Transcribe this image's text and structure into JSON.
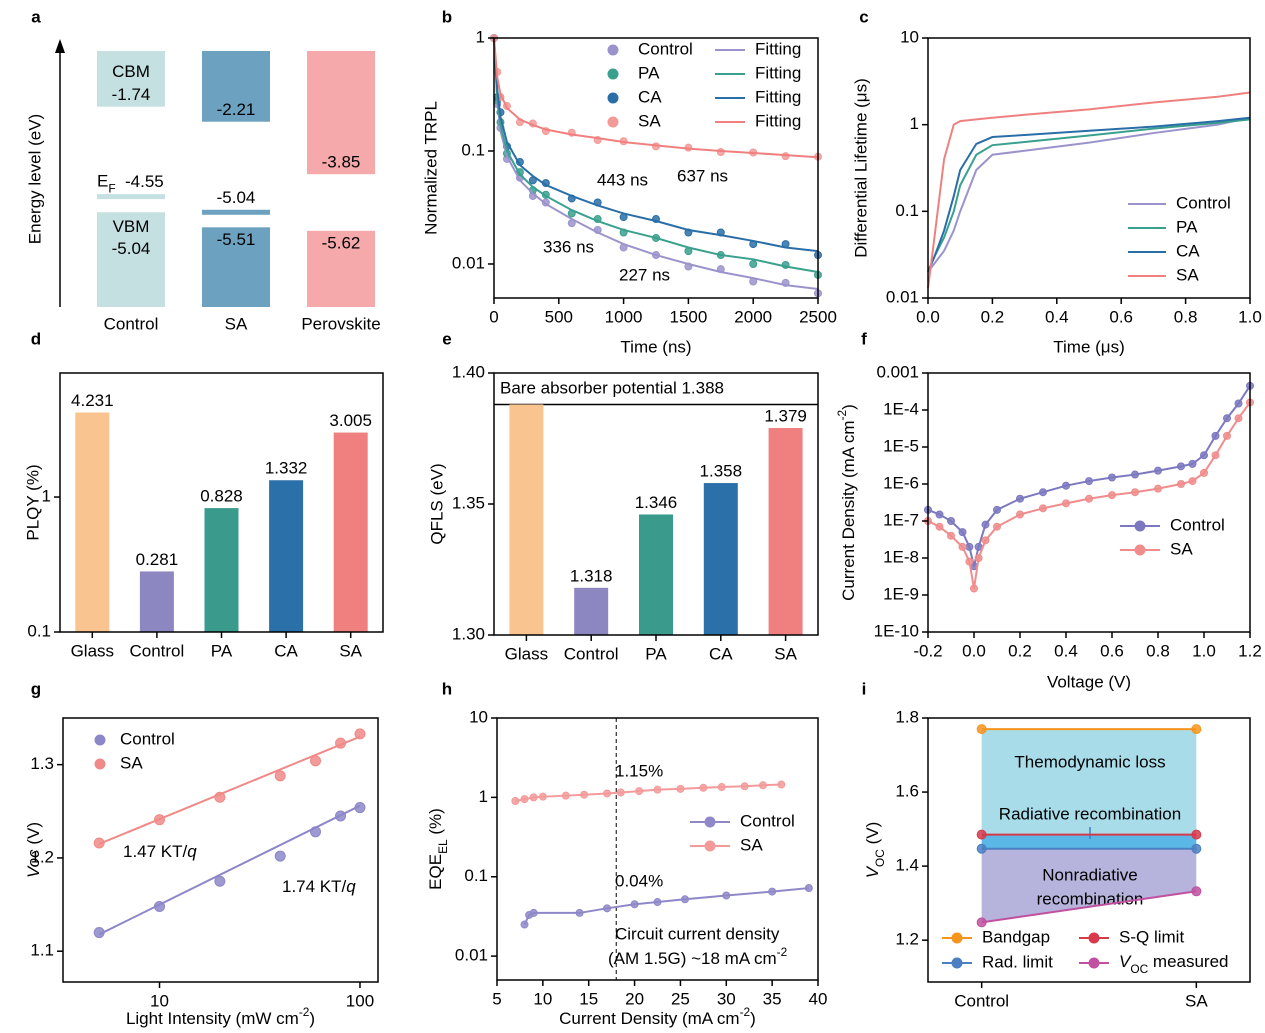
{
  "chart_data": [
    {
      "label": "a",
      "type": "energy",
      "ylabel": "Energy level (eV)",
      "categories": [
        "Control",
        "SA",
        "Perovskite"
      ],
      "colors": [
        "#c4e0e1",
        "#6ca1bf",
        "#f5a9aa"
      ],
      "ylim": [
        -8,
        0
      ],
      "series": [
        {
          "name": "CBM",
          "values": [
            -1.74,
            -2.21,
            -3.85
          ]
        },
        {
          "name": [
            {
              "text": "E"
            },
            {
              "text": "F",
              "style": "sub"
            }
          ],
          "values": [
            -4.55,
            -5.04,
            null
          ]
        },
        {
          "name": "VBM",
          "values": [
            -5.04,
            -5.51,
            -5.62
          ]
        }
      ]
    },
    {
      "label": "b",
      "type": "line",
      "xlabel": "Time (ns)",
      "ylabel": "Normalized TRPL",
      "ylog": true,
      "xlim": [
        0,
        2500
      ],
      "xticks": [
        0,
        500,
        1000,
        1500,
        2000,
        2500
      ],
      "ylim": [
        0.005,
        1
      ],
      "yticks": [
        0.01,
        0.1,
        1
      ],
      "x": [
        0,
        25,
        50,
        100,
        200,
        300,
        400,
        600,
        800,
        1000,
        1250,
        1500,
        1750,
        2000,
        2250,
        2500
      ],
      "series": [
        {
          "name": "Control",
          "mode": "markers",
          "color": "#9b94cc",
          "values": [
            1,
            0.26,
            0.16,
            0.085,
            0.058,
            0.04,
            0.035,
            0.023,
            0.02,
            0.014,
            0.012,
            0.0095,
            0.009,
            0.007,
            0.0068,
            0.0055
          ]
        },
        {
          "name": "PA",
          "mode": "markers",
          "color": "#3aa08e",
          "values": [
            1,
            0.28,
            0.18,
            0.095,
            0.065,
            0.045,
            0.041,
            0.028,
            0.025,
            0.019,
            0.017,
            0.013,
            0.012,
            0.01,
            0.0098,
            0.008
          ]
        },
        {
          "name": "CA",
          "mode": "markers",
          "color": "#2a6ea8",
          "values": [
            1,
            0.3,
            0.22,
            0.11,
            0.08,
            0.055,
            0.052,
            0.038,
            0.035,
            0.026,
            0.025,
            0.019,
            0.019,
            0.015,
            0.015,
            0.012
          ]
        },
        {
          "name": "SA",
          "mode": "markers",
          "color": "#f29a98",
          "values": [
            1,
            0.5,
            0.3,
            0.25,
            0.18,
            0.175,
            0.15,
            0.145,
            0.125,
            0.122,
            0.11,
            0.107,
            0.098,
            0.097,
            0.09,
            0.089
          ]
        },
        {
          "name": "Fitting",
          "mode": "lines",
          "color": "#9b94cc",
          "values": [
            1,
            0.28,
            0.15,
            0.09,
            0.055,
            0.042,
            0.034,
            0.025,
            0.019,
            0.015,
            0.012,
            0.01,
            0.0085,
            0.0075,
            0.0065,
            0.006
          ]
        },
        {
          "name": "Fitting",
          "mode": "lines",
          "color": "#3aa08e",
          "values": [
            1,
            0.3,
            0.17,
            0.1,
            0.062,
            0.048,
            0.04,
            0.03,
            0.024,
            0.02,
            0.017,
            0.014,
            0.012,
            0.011,
            0.0095,
            0.0085
          ]
        },
        {
          "name": "Fitting",
          "mode": "lines",
          "color": "#2a6ea8",
          "values": [
            1,
            0.35,
            0.2,
            0.12,
            0.075,
            0.06,
            0.05,
            0.04,
            0.033,
            0.028,
            0.024,
            0.02,
            0.018,
            0.016,
            0.014,
            0.013
          ]
        },
        {
          "name": "Fitting",
          "mode": "lines",
          "color": "#f08080",
          "values": [
            1,
            0.45,
            0.32,
            0.24,
            0.19,
            0.17,
            0.155,
            0.14,
            0.13,
            0.12,
            0.112,
            0.105,
            0.1,
            0.096,
            0.092,
            0.088
          ]
        }
      ],
      "annotations": [
        {
          "text": "443 ns",
          "color": "#2a6ea8"
        },
        {
          "text": "637 ns",
          "color": "#f08080"
        },
        {
          "text": "336 ns",
          "color": "#3aa08e"
        },
        {
          "text": "227 ns",
          "color": "#9b94cc"
        }
      ]
    },
    {
      "label": "c",
      "type": "line",
      "xlabel": "Time (μs)",
      "ylabel": "Differential Lifetime (μs)",
      "ylog": true,
      "xlim": [
        0,
        1
      ],
      "xticks": [
        {
          "value": 0,
          "label": "0.0"
        },
        0.2,
        0.4,
        0.6,
        0.8,
        {
          "value": 1,
          "label": "1.0"
        }
      ],
      "ylim": [
        0.01,
        10
      ],
      "yticks": [
        0.01,
        0.1,
        1,
        10
      ],
      "x": [
        0,
        0.02,
        0.05,
        0.08,
        0.1,
        0.15,
        0.2,
        0.3,
        0.5,
        0.7,
        0.9,
        1.0
      ],
      "series": [
        {
          "name": "Control",
          "mode": "lines",
          "color": "#9b94cc",
          "values": [
            0.02,
            0.025,
            0.035,
            0.06,
            0.1,
            0.3,
            0.45,
            0.5,
            0.62,
            0.8,
            1.0,
            1.2
          ]
        },
        {
          "name": "PA",
          "mode": "lines",
          "color": "#3aa08e",
          "values": [
            0.02,
            0.03,
            0.05,
            0.1,
            0.2,
            0.45,
            0.58,
            0.63,
            0.75,
            0.9,
            1.05,
            1.15
          ]
        },
        {
          "name": "CA",
          "mode": "lines",
          "color": "#2a6ea8",
          "values": [
            0.02,
            0.03,
            0.06,
            0.15,
            0.3,
            0.6,
            0.72,
            0.76,
            0.85,
            0.95,
            1.1,
            1.2
          ]
        },
        {
          "name": "SA",
          "mode": "lines",
          "color": "#f08080",
          "values": [
            0.013,
            0.05,
            0.4,
            1.0,
            1.1,
            1.15,
            1.2,
            1.3,
            1.5,
            1.8,
            2.1,
            2.35
          ]
        }
      ]
    },
    {
      "label": "d",
      "type": "bar",
      "ylabel": "PLQY (%)",
      "ylog": true,
      "ylim": [
        0.1,
        8.3
      ],
      "yticks": [
        0.1,
        1
      ],
      "categories": [
        "Glass",
        "Control",
        "PA",
        "CA",
        "SA"
      ],
      "values": [
        4.231,
        0.281,
        0.828,
        1.332,
        3.005
      ],
      "colors": [
        "#f9c48f",
        "#8c87c0",
        "#3a9a8c",
        "#2b70a8",
        "#f08080"
      ]
    },
    {
      "label": "e",
      "type": "bar",
      "ylabel": "QFLS (eV)",
      "ylim": [
        1.3,
        1.4
      ],
      "yticks": [
        {
          "value": 1.3,
          "label": "1.30"
        },
        1.35,
        {
          "value": 1.4,
          "label": "1.40"
        }
      ],
      "categories": [
        "Glass",
        "Control",
        "PA",
        "CA",
        "SA"
      ],
      "values": [
        1.388,
        1.318,
        1.346,
        1.358,
        1.379
      ],
      "value_labels": [
        null,
        "1.318",
        "1.346",
        "1.358",
        "1.379"
      ],
      "colors": [
        "#f9c48f",
        "#8c87c0",
        "#3a9a8c",
        "#2b70a8",
        "#f08080"
      ],
      "reference": 1.388,
      "annotations": [
        {
          "text": "Bare absorber potential 1.388",
          "color": "#000000"
        }
      ]
    },
    {
      "label": "f",
      "type": "line",
      "xlabel": "Voltage (V)",
      "ylabel": [
        {
          "text": "Current Density (mA cm"
        },
        {
          "text": "-2",
          "style": "sup"
        },
        {
          "text": ")"
        }
      ],
      "ylog": true,
      "xlim": [
        -0.2,
        1.2
      ],
      "xticks": [
        -0.2,
        {
          "value": 0,
          "label": "0.0"
        },
        0.2,
        0.4,
        0.6,
        0.8,
        {
          "value": 1,
          "label": "1.0"
        },
        1.2
      ],
      "ylim": [
        1e-10,
        0.001
      ],
      "yticks": [
        {
          "value": 1e-10,
          "label": "1E-10"
        },
        {
          "value": 1e-09,
          "label": "1E-9"
        },
        {
          "value": 1e-08,
          "label": "1E-8"
        },
        {
          "value": 1e-07,
          "label": "1E-7"
        },
        {
          "value": 1e-06,
          "label": "1E-6"
        },
        {
          "value": 1e-05,
          "label": "1E-5"
        },
        {
          "value": 0.0001,
          "label": "1E-4"
        },
        0.001
      ],
      "x": [
        -0.2,
        -0.15,
        -0.1,
        -0.05,
        -0.02,
        0,
        0.02,
        0.05,
        0.1,
        0.2,
        0.3,
        0.4,
        0.5,
        0.6,
        0.7,
        0.8,
        0.9,
        0.95,
        1.0,
        1.05,
        1.1,
        1.15,
        1.2
      ],
      "series": [
        {
          "name": "Control",
          "mode": "lines+markers",
          "color": "#7b78c0",
          "values": [
            2e-07,
            1.5e-07,
            1e-07,
            5e-08,
            2e-08,
            6e-09,
            2e-08,
            8e-08,
            2e-07,
            4e-07,
            6e-07,
            9e-07,
            1.2e-06,
            1.5e-06,
            1.8e-06,
            2.3e-06,
            3e-06,
            3.5e-06,
            6e-06,
            2e-05,
            6e-05,
            0.00015,
            0.00045
          ]
        },
        {
          "name": "SA",
          "mode": "lines+markers",
          "color": "#f08c8c",
          "values": [
            1e-07,
            7e-08,
            4e-08,
            2e-08,
            8e-09,
            1.5e-09,
            1e-08,
            3e-08,
            7e-08,
            1.5e-07,
            2.2e-07,
            3e-07,
            4e-07,
            5e-07,
            6e-07,
            7.5e-07,
            1e-06,
            1.2e-06,
            2e-06,
            6e-06,
            2e-05,
            6e-05,
            0.00016
          ]
        }
      ]
    },
    {
      "label": "g",
      "type": "line",
      "xlabel": [
        {
          "text": "Light Intensity (mW cm"
        },
        {
          "text": "-2",
          "style": "sup"
        },
        {
          "text": ")"
        }
      ],
      "ylabel": [
        {
          "text": "Voc",
          "style": "italic"
        },
        {
          "text": " (V)"
        }
      ],
      "xlog": true,
      "xlim": [
        3.3,
        123
      ],
      "xticks": [
        10,
        100
      ],
      "ylim": [
        1.067,
        1.35
      ],
      "yticks": [
        1.1,
        1.2,
        1.3
      ],
      "x": [
        5,
        10,
        20,
        40,
        60,
        80,
        100
      ],
      "series": [
        {
          "name": "Control",
          "mode": "markers",
          "color": "#8c87c9",
          "values": [
            1.12,
            1.148,
            1.175,
            1.202,
            1.228,
            1.245,
            1.254
          ],
          "fit_x": [
            5,
            100
          ],
          "fit": [
            1.118,
            1.256
          ]
        },
        {
          "name": "SA",
          "mode": "markers",
          "color": "#f08a88",
          "values": [
            1.216,
            1.241,
            1.265,
            1.288,
            1.304,
            1.323,
            1.333
          ],
          "fit_x": [
            5,
            100
          ],
          "fit": [
            1.215,
            1.33
          ]
        }
      ],
      "annotations": [
        {
          "text": [
            {
              "text": "1.47 KT/"
            },
            {
              "text": "q",
              "style": "italic"
            }
          ],
          "color": "#f08a88"
        },
        {
          "text": [
            {
              "text": "1.74 KT/"
            },
            {
              "text": "q",
              "style": "italic"
            }
          ],
          "color": "#8c87c9"
        }
      ]
    },
    {
      "label": "h",
      "type": "line",
      "xlabel": [
        {
          "text": "Current Density (mA cm"
        },
        {
          "text": "-2",
          "style": "sup"
        },
        {
          "text": ")"
        }
      ],
      "ylabel": [
        {
          "text": "EQE"
        },
        {
          "text": "EL",
          "style": "sub"
        },
        {
          "text": " (%)"
        }
      ],
      "ylog": true,
      "xlim": [
        5,
        40
      ],
      "xticks": [
        5,
        10,
        15,
        20,
        25,
        30,
        35,
        40
      ],
      "ylim": [
        0.005,
        10
      ],
      "yticks": [
        0.01,
        0.1,
        1,
        10
      ],
      "vline": 18,
      "series": [
        {
          "name": "Control",
          "mode": "lines+markers",
          "color": "#8e88c8",
          "x": [
            8,
            8.5,
            9,
            14,
            17,
            20,
            22.5,
            25.5,
            30,
            35,
            39
          ],
          "values": [
            0.025,
            0.033,
            0.035,
            0.035,
            0.04,
            0.045,
            0.048,
            0.052,
            0.058,
            0.065,
            0.072
          ]
        },
        {
          "name": "SA",
          "mode": "lines+markers",
          "color": "#f39a9a",
          "x": [
            7,
            8,
            9,
            10,
            12.5,
            14.5,
            17,
            18.5,
            20.5,
            22.5,
            25,
            27.5,
            29.5,
            32,
            34,
            36
          ],
          "values": [
            0.9,
            0.95,
            1.0,
            1.02,
            1.05,
            1.08,
            1.12,
            1.15,
            1.2,
            1.25,
            1.28,
            1.32,
            1.35,
            1.38,
            1.42,
            1.45
          ]
        }
      ],
      "annotations": [
        {
          "text": "1.15%",
          "color": "#000000"
        },
        {
          "text": "0.04%",
          "color": "#000000"
        },
        {
          "text": "Circuit current density",
          "color": "#000000"
        },
        {
          "text": [
            {
              "text": "(AM 1.5G) ~18 mA cm"
            },
            {
              "text": "-2",
              "style": "sup"
            }
          ],
          "color": "#000000"
        }
      ]
    },
    {
      "label": "i",
      "type": "line",
      "ylabel": [
        {
          "text": "V",
          "style": "italic"
        },
        {
          "text": "OC",
          "style": "sub"
        },
        {
          "text": " (V)"
        }
      ],
      "ylim": [
        1.087,
        1.8
      ],
      "yticks": [
        1.2,
        1.4,
        1.6,
        1.8
      ],
      "categories": [
        "Control",
        "SA"
      ],
      "series": [
        {
          "name": "Bandgap",
          "mode": "lines+markers",
          "color": "#f7941d",
          "values": [
            1.77,
            1.77
          ]
        },
        {
          "name": "S-Q limit",
          "mode": "lines+markers",
          "color": "#d63a4a",
          "values": [
            1.485,
            1.485
          ]
        },
        {
          "name": "Rad. limit",
          "mode": "lines+markers",
          "color": "#4a7fc1",
          "values": [
            1.447,
            1.447
          ]
        },
        {
          "name": [
            {
              "text": "V",
              "style": "italic"
            },
            {
              "text": "OC",
              "style": "sub"
            },
            {
              "text": " measured"
            }
          ],
          "mode": "lines+markers",
          "color": "#c050a0",
          "values": [
            1.248,
            1.332
          ]
        }
      ],
      "regions": [
        {
          "label": [
            "Themodynamic loss"
          ],
          "label_color": "#e03c4c",
          "color": "#a8dce9"
        },
        {
          "label": [
            "Radiative recombination"
          ],
          "label_color": "#3d7fc8",
          "color": "#5bb8e6"
        },
        {
          "label": [
            "Nonradiative",
            "recombination"
          ],
          "label_color": "#d050a0",
          "color": "#b6b3dc"
        }
      ]
    }
  ]
}
